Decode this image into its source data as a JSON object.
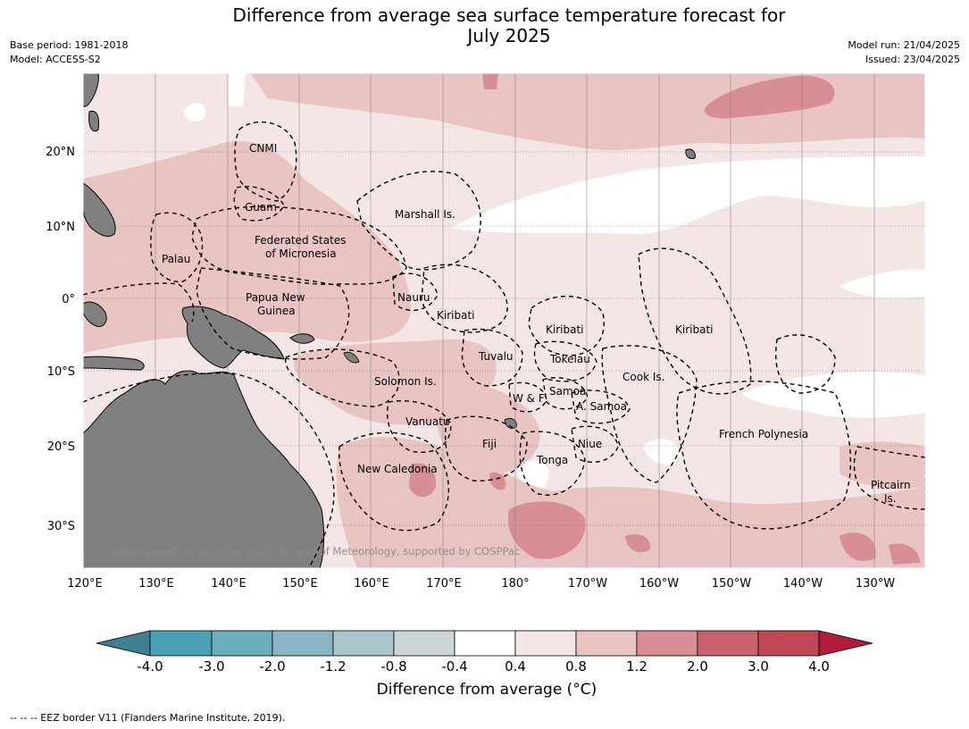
{
  "header": {
    "title_line1": "Difference from average sea surface temperature forecast for",
    "title_line2": "July 2025",
    "base_period": "Base period: 1981-2018",
    "model": "Model: ACCESS-S2",
    "model_run": "Model run: 21/04/2025",
    "issued": "Issued: 23/04/2025"
  },
  "map": {
    "copyright": "© Commonwealth of Australia 2025, Bureau of Meteorology, supported by COSPPac",
    "lat_labels": [
      "20°N",
      "10°N",
      "0°",
      "10°S",
      "20°S",
      "30°S"
    ],
    "lon_labels": [
      "120°E",
      "130°E",
      "140°E",
      "150°E",
      "160°E",
      "170°E",
      "180°",
      "170°W",
      "160°W",
      "150°W",
      "140°W",
      "130°W"
    ],
    "region_labels": {
      "cnmi": "CNMI",
      "guam": "Guam",
      "palau": "Palau",
      "fsm_line1": "Federated States",
      "fsm_line2": "of Micronesia",
      "marshall": "Marshall Is.",
      "png_line1": "Papua New",
      "png_line2": "Guinea",
      "nauru": "Nauru",
      "kiribati_w": "Kiribati",
      "kiribati_c": "Kiribati",
      "kiribati_e": "Kiribati",
      "tuvalu": "Tuvalu",
      "tokelau": "Tokelau",
      "cook": "Cook Is.",
      "solomon": "Solomon Is.",
      "wf": "W & F",
      "samoa": "Samoa",
      "asamoa": "A. Samoa",
      "vanuatu": "Vanuatu",
      "fiji": "Fiji",
      "niue": "Niue",
      "tonga": "Tonga",
      "frpoly": "French Polynesia",
      "newcal": "New Caledonia",
      "pitcairn_line1": "Pitcairn",
      "pitcairn_line2": "Is."
    },
    "colors": {
      "land": "#808080",
      "white_bin": "#ffffff",
      "bin_0_4_0_8": "#f5e6e6",
      "bin_0_8_1_2": "#e8c4c3",
      "bin_1_2_2_0": "#d88e95",
      "bin_2_0_3_0": "#c9626f"
    }
  },
  "colorbar": {
    "ticks": [
      "-4.0",
      "-3.0",
      "-2.0",
      "-1.2",
      "-0.8",
      "-0.4",
      "0.4",
      "0.8",
      "1.2",
      "2.0",
      "3.0",
      "4.0"
    ],
    "colors": [
      "#3d8090",
      "#4aa0b4",
      "#6aaebc",
      "#88b6c2",
      "#a8c6cc",
      "#ccd6d6",
      "#ffffff",
      "#f5e6e6",
      "#e8c4c3",
      "#d88e95",
      "#c9626f",
      "#c14656",
      "#b01c3a"
    ],
    "label": "Difference from average (°C)"
  },
  "footer": {
    "legend": "-- -- -- EEZ border V11 (Flanders Marine Institute, 2019)."
  }
}
